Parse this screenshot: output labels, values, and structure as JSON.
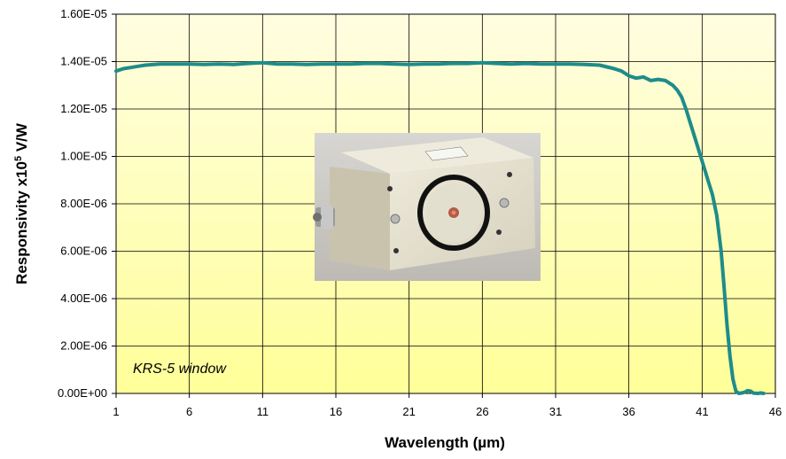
{
  "chart_data": {
    "type": "line",
    "title": "",
    "xlabel": "Wavelength (µm)",
    "ylabel_main": "Responsivity x10",
    "ylabel_sup": "5",
    "ylabel_unit": " V/W",
    "annotation": "KRS-5 window",
    "xlim": [
      1,
      46
    ],
    "ylim": [
      0,
      1.6e-05
    ],
    "x_ticks": [
      1,
      6,
      11,
      16,
      21,
      26,
      31,
      36,
      41,
      46
    ],
    "x_tick_labels": [
      "1",
      "6",
      "11",
      "16",
      "21",
      "26",
      "31",
      "36",
      "41",
      "46"
    ],
    "y_ticks": [
      0,
      2e-06,
      4e-06,
      6e-06,
      8e-06,
      1e-05,
      1.2e-05,
      1.4e-05,
      1.6e-05
    ],
    "y_tick_labels": [
      "0.00E+00",
      "2.00E-06",
      "4.00E-06",
      "6.00E-06",
      "8.00E-06",
      "1.00E-05",
      "1.20E-05",
      "1.40E-05",
      "1.60E-05"
    ],
    "grid": true,
    "background": {
      "top": "#fffde0",
      "bottom": "#ffff99"
    },
    "series": [
      {
        "color": "#1e8c8a",
        "x": [
          1.0,
          1.5,
          2,
          2.5,
          3,
          4,
          5,
          6,
          7,
          8,
          9,
          10,
          11,
          12,
          13,
          14,
          15,
          16,
          17,
          18,
          19,
          20,
          21,
          22,
          23,
          24,
          25,
          26,
          27,
          28,
          29,
          30,
          31,
          32,
          33,
          34,
          35,
          35.5,
          36,
          36.5,
          37,
          37.5,
          38,
          38.5,
          39,
          39.3,
          39.6,
          39.9,
          40.2,
          40.5,
          40.8,
          41.1,
          41.4,
          41.7,
          42.0,
          42.3,
          42.5,
          42.7,
          42.9,
          43.1,
          43.3,
          43.5,
          43.7,
          43.9,
          44.1,
          44.3,
          44.5,
          44.8,
          45.0,
          45.2
        ],
        "y": [
          1.36e-05,
          1.37e-05,
          1.375e-05,
          1.38e-05,
          1.385e-05,
          1.39e-05,
          1.39e-05,
          1.39e-05,
          1.388e-05,
          1.39e-05,
          1.388e-05,
          1.392e-05,
          1.395e-05,
          1.39e-05,
          1.39e-05,
          1.388e-05,
          1.39e-05,
          1.39e-05,
          1.39e-05,
          1.392e-05,
          1.392e-05,
          1.39e-05,
          1.388e-05,
          1.39e-05,
          1.39e-05,
          1.392e-05,
          1.392e-05,
          1.395e-05,
          1.392e-05,
          1.39e-05,
          1.392e-05,
          1.39e-05,
          1.39e-05,
          1.39e-05,
          1.388e-05,
          1.385e-05,
          1.37e-05,
          1.36e-05,
          1.34e-05,
          1.33e-05,
          1.335e-05,
          1.32e-05,
          1.325e-05,
          1.32e-05,
          1.3e-05,
          1.28e-05,
          1.25e-05,
          1.2e-05,
          1.14e-05,
          1.08e-05,
          1.02e-05,
          9.6e-06,
          9e-06,
          8.4e-06,
          7.5e-06,
          6e-06,
          4.5e-06,
          2.9e-06,
          1.6e-06,
          6e-07,
          1e-07,
          0,
          2e-08,
          5e-08,
          1.2e-07,
          1e-07,
          1.5e-08,
          0,
          2e-08,
          0
        ]
      }
    ]
  }
}
